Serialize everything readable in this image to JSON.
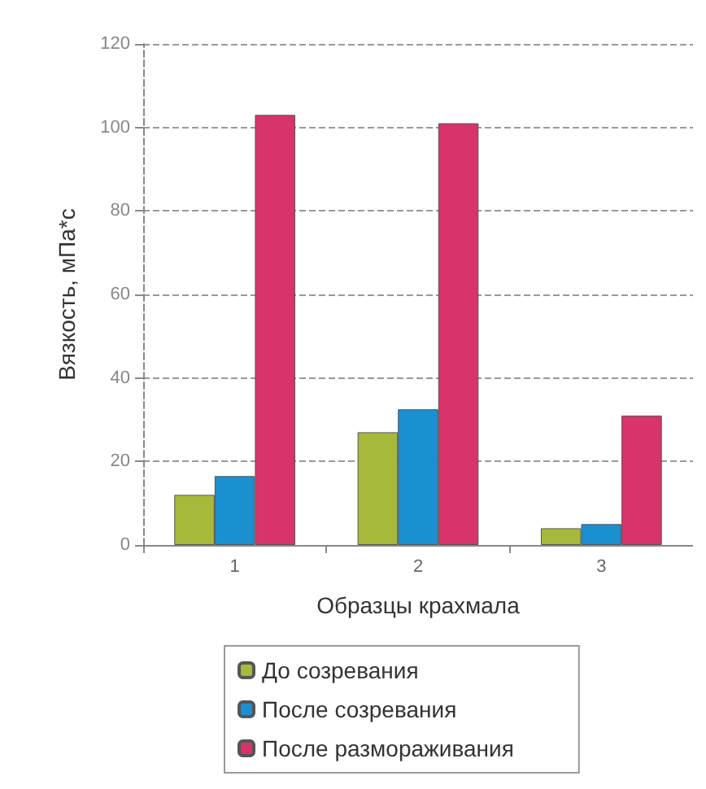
{
  "chart_data": {
    "type": "bar",
    "xlabel": "Образцы крахмала",
    "ylabel": "Вязкость, мПа*с",
    "categories": [
      "1",
      "2",
      "3"
    ],
    "series": [
      {
        "name": "До созревания",
        "color": "#a8b83a",
        "values": [
          12,
          27,
          4
        ]
      },
      {
        "name": "После созревания",
        "color": "#1a90d0",
        "values": [
          16.5,
          32.5,
          5
        ]
      },
      {
        "name": "После размораживания",
        "color": "#d8336a",
        "values": [
          103,
          101,
          31
        ]
      }
    ],
    "ylim": [
      0,
      120
    ],
    "yticks": [
      0,
      20,
      40,
      60,
      80,
      100,
      120
    ],
    "grid": "y",
    "legend": "bottom"
  }
}
